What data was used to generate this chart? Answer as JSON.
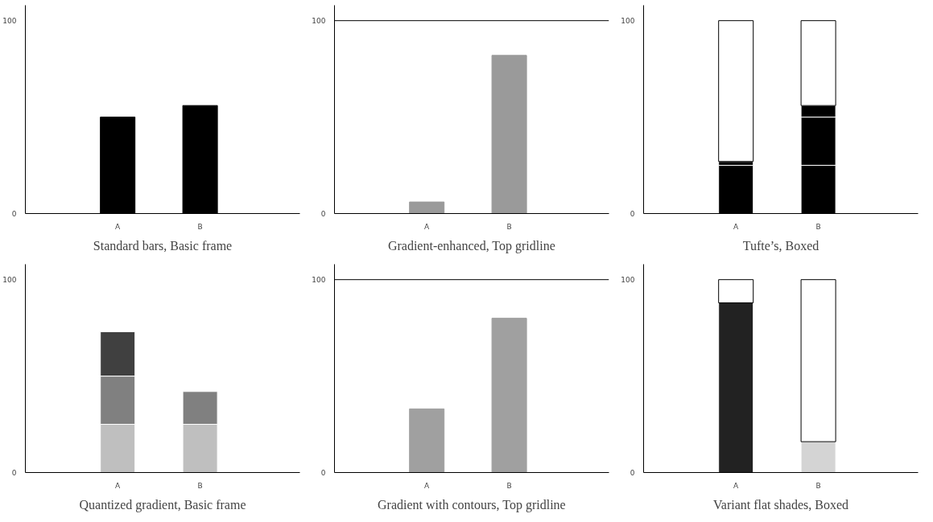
{
  "chart_data": [
    {
      "type": "bar",
      "title": "Standard bars, Basic frame",
      "categories": [
        "A",
        "B"
      ],
      "ylim": [
        0,
        108
      ],
      "yticks": [
        0,
        100
      ],
      "series": [
        {
          "color": "#000000",
          "values": [
            50,
            56
          ]
        }
      ]
    },
    {
      "type": "bar",
      "title": "Gradient-enhanced, Top gridline",
      "categories": [
        "A",
        "B"
      ],
      "ylim": [
        0,
        108
      ],
      "yticks": [
        0,
        100
      ],
      "series": [
        {
          "color": "#9a9a9a",
          "values": [
            6,
            82
          ]
        }
      ],
      "ref_lines": [
        {
          "axis": "y",
          "value": 100,
          "color": "#000000"
        }
      ]
    },
    {
      "type": "bar",
      "title": "Tufte’s, Boxed",
      "categories": [
        "A",
        "B"
      ],
      "ylim": [
        0,
        108
      ],
      "yticks": [
        0,
        100
      ],
      "stacked": true,
      "series": [
        {
          "color": "#000000",
          "values": [
            25,
            25
          ]
        },
        {
          "color": "#000000",
          "values": [
            2,
            25
          ]
        },
        {
          "color": "#000000",
          "values": [
            null,
            6
          ]
        },
        {
          "color": "#ffffff",
          "values": [
            73,
            44
          ]
        }
      ]
    },
    {
      "type": "bar",
      "title": "Quantized gradient, Basic frame",
      "categories": [
        "A",
        "B"
      ],
      "ylim": [
        0,
        108
      ],
      "yticks": [
        0,
        100
      ],
      "stacked": true,
      "series": [
        {
          "color": "#bfbfbf",
          "values": [
            25,
            25
          ]
        },
        {
          "color": "#808080",
          "values": [
            25,
            17
          ]
        },
        {
          "color": "#404040",
          "values": [
            23,
            null
          ]
        }
      ]
    },
    {
      "type": "bar",
      "title": "Gradient with contours, Top gridline",
      "categories": [
        "A",
        "B"
      ],
      "ylim": [
        0,
        108
      ],
      "yticks": [
        0,
        100
      ],
      "series": [
        {
          "color": "#a0a0a0",
          "values": [
            33,
            80
          ]
        }
      ],
      "ref_lines": [
        {
          "axis": "y",
          "value": 100,
          "color": "#000000"
        }
      ]
    },
    {
      "type": "bar",
      "title": "Variant flat shades, Boxed",
      "categories": [
        "A",
        "B"
      ],
      "ylim": [
        0,
        108
      ],
      "yticks": [
        0,
        100
      ],
      "stacked": true,
      "series": [
        {
          "colors": [
            "#222222",
            "#d4d4d4"
          ],
          "values": [
            88,
            16
          ]
        },
        {
          "color": "#ffffff",
          "values": [
            12,
            84
          ]
        }
      ]
    }
  ]
}
